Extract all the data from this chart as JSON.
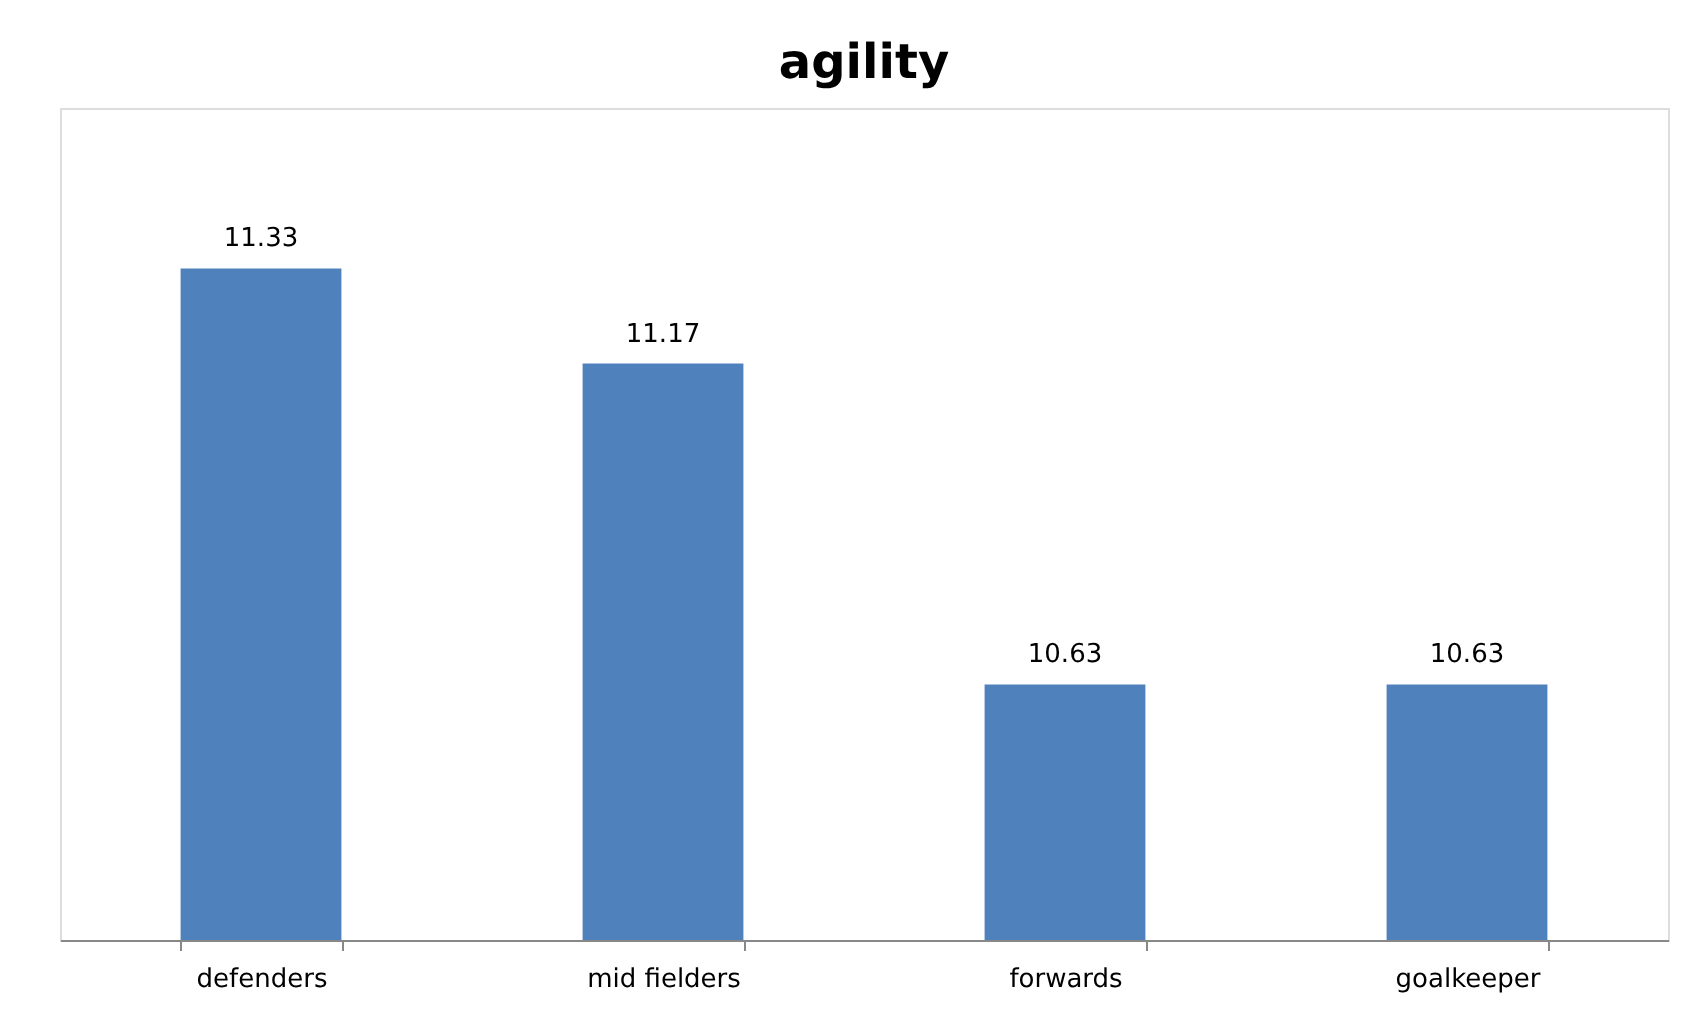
{
  "chart_data": {
    "type": "bar",
    "title": "agility",
    "categories": [
      "defenders",
      "mid fielders",
      "forwards",
      "goalkeeper"
    ],
    "values": [
      11.33,
      11.17,
      10.63,
      10.63
    ],
    "color": "#4f81bd",
    "ylim": [
      10.2,
      11.6
    ],
    "data_labels": true,
    "grid": false
  }
}
